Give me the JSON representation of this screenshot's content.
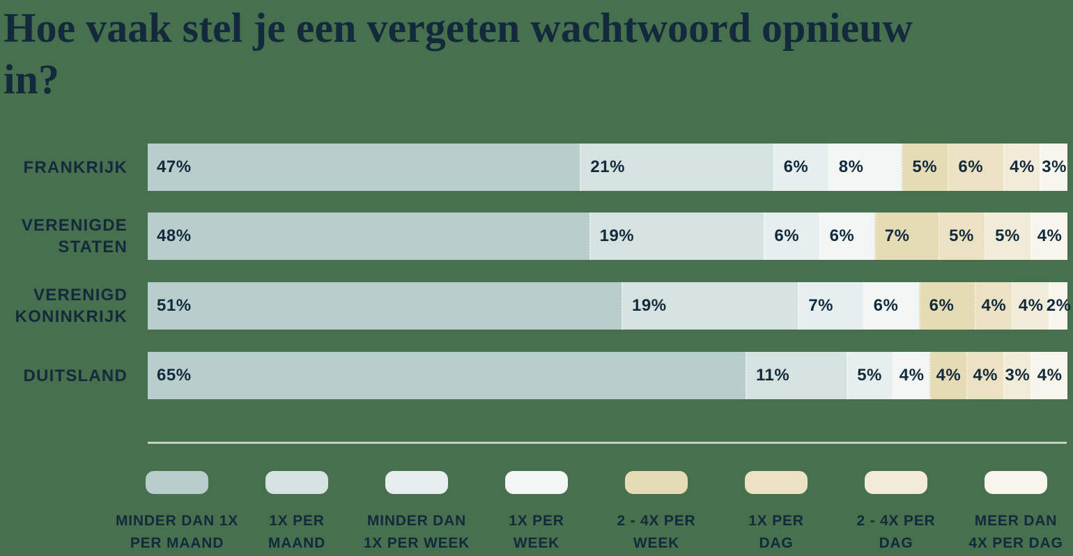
{
  "title": {
    "text": "Hoe vaak stel je een vergeten wachtwoord opnieuw in?"
  },
  "colors": {
    "background": "#47714e",
    "text": "#13293c",
    "divider": "#c8d1c9"
  },
  "chart_data": {
    "type": "bar",
    "variant": "horizontal-stacked-percent",
    "title": "Hoe vaak stel je een vergeten wachtwoord opnieuw in?",
    "unit": "%",
    "xlim": [
      0,
      100
    ],
    "grid": false,
    "legend_position": "bottom",
    "categories": [
      "FRANKRIJK",
      "VERENIGDE STATEN",
      "VERENIGD KONINKRIJK",
      "DUITSLAND"
    ],
    "legend": [
      {
        "name": "Minder dan 1x per maand",
        "line1": "MINDER DAN 1X",
        "line2": "PER MAAND",
        "color": "#b7cecd"
      },
      {
        "name": "1x per maand",
        "line1": "1X PER",
        "line2": "MAAND",
        "color": "#d5e2e0"
      },
      {
        "name": "Minder dan 1x per week",
        "line1": "MINDER DAN",
        "line2": "1X PER WEEK",
        "color": "#e7efee"
      },
      {
        "name": "1x per week",
        "line1": "1X PER",
        "line2": "WEEK",
        "color": "#f2f7f6"
      },
      {
        "name": "2 - 4x per week",
        "line1": "2 - 4X PER",
        "line2": "WEEK",
        "color": "#e5dcb5"
      },
      {
        "name": "1x per dag",
        "line1": "1X PER",
        "line2": "DAG",
        "color": "#eae2c2"
      },
      {
        "name": "2 - 4x per dag",
        "line1": "2 - 4X PER",
        "line2": "DAG",
        "color": "#f1ecd8"
      },
      {
        "name": "Meer dan 4x per dag",
        "line1": "MEER DAN",
        "line2": "4X PER DAG",
        "color": "#f8f6ec"
      }
    ],
    "series": [
      {
        "name": "Minder dan 1x per maand",
        "values": [
          47,
          48,
          51,
          65
        ]
      },
      {
        "name": "1x per maand",
        "values": [
          21,
          19,
          19,
          11
        ]
      },
      {
        "name": "Minder dan 1x per week",
        "values": [
          6,
          6,
          7,
          5
        ]
      },
      {
        "name": "1x per week",
        "values": [
          8,
          6,
          6,
          4
        ]
      },
      {
        "name": "2 - 4x per week",
        "values": [
          5,
          7,
          6,
          4
        ]
      },
      {
        "name": "1x per dag",
        "values": [
          6,
          5,
          4,
          4
        ]
      },
      {
        "name": "2 - 4x per dag",
        "values": [
          4,
          5,
          4,
          3
        ]
      },
      {
        "name": "Meer dan 4x per dag",
        "values": [
          3,
          4,
          2,
          4
        ]
      }
    ],
    "rows": [
      {
        "category_display": "FRANKRIJK",
        "segments": [
          {
            "value": 47,
            "label": "47%"
          },
          {
            "value": 21,
            "label": "21%"
          },
          {
            "value": 6,
            "label": "6%"
          },
          {
            "value": 8,
            "label": "8%"
          },
          {
            "value": 5,
            "label": "5%"
          },
          {
            "value": 6,
            "label": "6%"
          },
          {
            "value": 4,
            "label": "4%"
          },
          {
            "value": 3,
            "label": "3%"
          }
        ]
      },
      {
        "category_display": "VERENIGDE STATEN",
        "segments": [
          {
            "value": 48,
            "label": "48%"
          },
          {
            "value": 19,
            "label": "19%"
          },
          {
            "value": 6,
            "label": "6%"
          },
          {
            "value": 6,
            "label": "6%"
          },
          {
            "value": 7,
            "label": "7%"
          },
          {
            "value": 5,
            "label": "5%"
          },
          {
            "value": 5,
            "label": "5%"
          },
          {
            "value": 4,
            "label": "4%"
          }
        ]
      },
      {
        "category_display": "VERENIGD KONINKRIJK",
        "segments": [
          {
            "value": 51,
            "label": "51%"
          },
          {
            "value": 19,
            "label": "19%"
          },
          {
            "value": 7,
            "label": "7%"
          },
          {
            "value": 6,
            "label": "6%"
          },
          {
            "value": 6,
            "label": "6%"
          },
          {
            "value": 4,
            "label": "4%"
          },
          {
            "value": 4,
            "label": "4%"
          },
          {
            "value": 2,
            "label": "2%"
          }
        ]
      },
      {
        "category_display": "DUITSLAND",
        "segments": [
          {
            "value": 65,
            "label": "65%"
          },
          {
            "value": 11,
            "label": "11%"
          },
          {
            "value": 5,
            "label": "5%"
          },
          {
            "value": 4,
            "label": "4%"
          },
          {
            "value": 4,
            "label": "4%"
          },
          {
            "value": 4,
            "label": "4%"
          },
          {
            "value": 3,
            "label": "3%"
          },
          {
            "value": 4,
            "label": "4%"
          }
        ]
      }
    ]
  }
}
